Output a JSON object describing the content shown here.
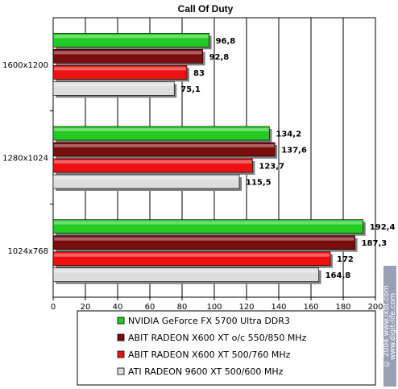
{
  "chart_data": {
    "type": "bar",
    "orientation": "horizontal",
    "title": "Call Of Duty",
    "categories": [
      "1600x1200",
      "1280x1024",
      "1024x768"
    ],
    "series": [
      {
        "name": "NVIDIA GeForce FX 5700 Ultra DDR3",
        "values": [
          96.8,
          134.2,
          192.4
        ],
        "labels": [
          "96,8",
          "134,2",
          "192,4"
        ],
        "color": "#22cc22"
      },
      {
        "name": "ABIT RADEON X600 XT o/c 550/850 MHz",
        "values": [
          92.8,
          137.6,
          187.3
        ],
        "labels": [
          "92,8",
          "137,6",
          "187,3"
        ],
        "color": "#7a0d0d"
      },
      {
        "name": "ABIT RADEON X600 XT 500/760 MHz",
        "values": [
          83,
          123.7,
          172
        ],
        "labels": [
          "83",
          "123,7",
          "172"
        ],
        "color": "#ee1111"
      },
      {
        "name": "ATI RADEON 9600 XT 500/600 MHz",
        "values": [
          75.1,
          115.5,
          164.8
        ],
        "labels": [
          "75,1",
          "115,5",
          "164,8"
        ],
        "color": "#dddddd"
      }
    ],
    "xlim": [
      0,
      200
    ],
    "ticks": [
      "0",
      "20",
      "40",
      "60",
      "80",
      "100",
      "120",
      "140",
      "160",
      "180",
      "200"
    ],
    "grid": true,
    "legend_position": "bottom"
  },
  "watermark": {
    "line1": "© 2004 www.ixbt.com",
    "line2": "www.digit-life.com"
  }
}
